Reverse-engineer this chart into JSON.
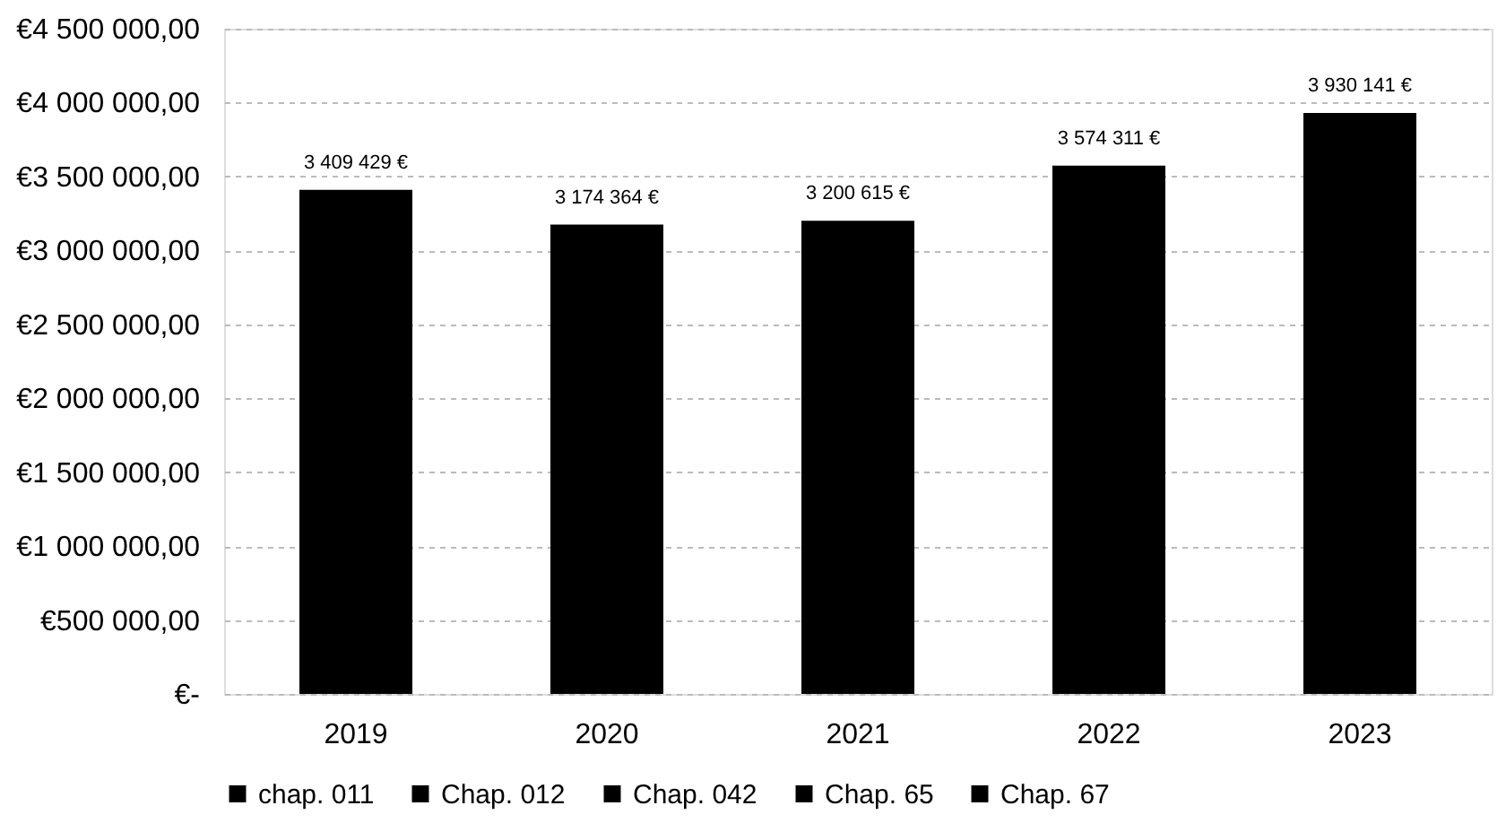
{
  "chart_data": {
    "type": "bar",
    "categories": [
      "2019",
      "2020",
      "2021",
      "2022",
      "2023"
    ],
    "series": [
      {
        "name": "chap. 011",
        "color": "#000000",
        "values": [
          3409429,
          3174364,
          3200615,
          3574311,
          3930141
        ]
      },
      {
        "name": "Chap. 012",
        "color": "#000000",
        "values": [
          null,
          null,
          null,
          null,
          null
        ]
      },
      {
        "name": "Chap. 042",
        "color": "#000000",
        "values": [
          null,
          null,
          null,
          null,
          null
        ]
      },
      {
        "name": "Chap. 65",
        "color": "#000000",
        "values": [
          null,
          null,
          null,
          null,
          null
        ]
      },
      {
        "name": "Chap. 67",
        "color": "#000000",
        "values": [
          null,
          null,
          null,
          null,
          null
        ]
      }
    ],
    "totals": [
      "3 409 429 €",
      "3 174 364 €",
      "3 200 615 €",
      "3 574 311 €",
      "3 930 141 €"
    ],
    "ylim": [
      0,
      4500000
    ],
    "yticks": [
      {
        "value": 0,
        "label": "€-"
      },
      {
        "value": 500000,
        "label": "€500 000,00"
      },
      {
        "value": 1000000,
        "label": "€1 000 000,00"
      },
      {
        "value": 1500000,
        "label": "€1 500 000,00"
      },
      {
        "value": 2000000,
        "label": "€2 000 000,00"
      },
      {
        "value": 2500000,
        "label": "€2 500 000,00"
      },
      {
        "value": 3000000,
        "label": "€3 000 000,00"
      },
      {
        "value": 3500000,
        "label": "€3 500 000,00"
      },
      {
        "value": 4000000,
        "label": "€4 000 000,00"
      },
      {
        "value": 4500000,
        "label": "€4 500 000,00"
      }
    ],
    "grid": "y",
    "legend": "bottom"
  }
}
